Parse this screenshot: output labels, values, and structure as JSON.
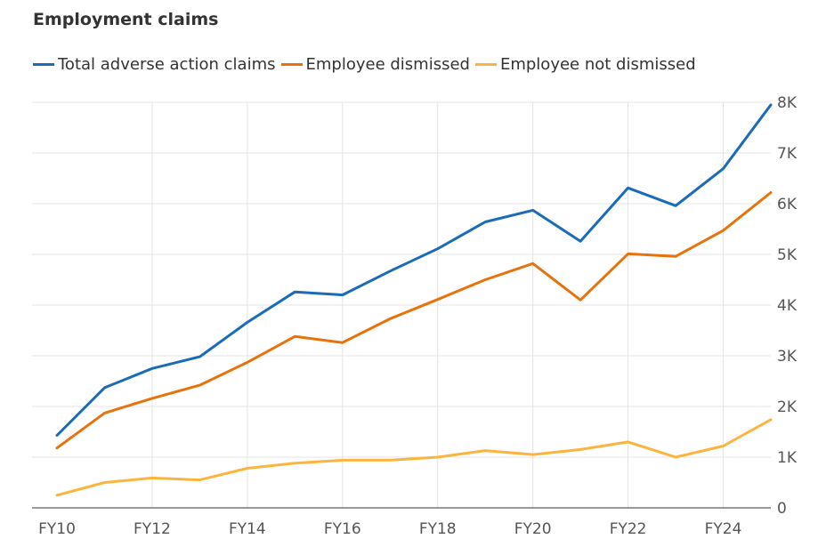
{
  "chart_data": {
    "type": "line",
    "title": "Employment claims",
    "xlabel": "",
    "ylabel": "",
    "x": [
      "FY10",
      "FY11",
      "FY12",
      "FY13",
      "FY14",
      "FY15",
      "FY16",
      "FY17",
      "FY18",
      "FY19",
      "FY20",
      "FY21",
      "FY22",
      "FY23",
      "FY24",
      "FY25"
    ],
    "x_tick_labels": [
      "FY10",
      "FY12",
      "FY14",
      "FY16",
      "FY18",
      "FY20",
      "FY22",
      "FY24"
    ],
    "ylim": [
      0,
      8000
    ],
    "y_ticks": [
      0,
      1000,
      2000,
      3000,
      4000,
      5000,
      6000,
      7000,
      8000
    ],
    "y_tick_labels": [
      "0",
      "1K",
      "2K",
      "3K",
      "4K",
      "5K",
      "6K",
      "7K",
      "8K"
    ],
    "y_axis_position": "right",
    "grid": true,
    "legend_position": "top-left",
    "series": [
      {
        "name": "Total adverse action claims",
        "color": "#1a6bb8",
        "values": [
          1430,
          2370,
          2750,
          2980,
          3660,
          4260,
          4200,
          4670,
          5110,
          5640,
          5870,
          5260,
          6310,
          5960,
          6690,
          7950
        ]
      },
      {
        "name": "Employee dismissed",
        "color": "#e8720c",
        "values": [
          1180,
          1870,
          2160,
          2420,
          2870,
          3380,
          3260,
          3730,
          4110,
          4500,
          4820,
          4100,
          5010,
          4960,
          5470,
          6220
        ]
      },
      {
        "name": "Employee not dismissed",
        "color": "#fbb53f",
        "values": [
          250,
          500,
          590,
          550,
          780,
          880,
          940,
          940,
          1000,
          1130,
          1050,
          1150,
          1300,
          1000,
          1220,
          1740
        ]
      }
    ]
  }
}
